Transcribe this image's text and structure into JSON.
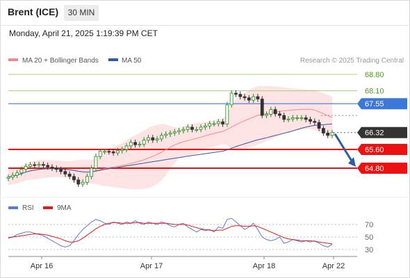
{
  "header": {
    "instrument": "Brent (ICE)",
    "timeframe": "30 MIN"
  },
  "datetime": "Monday, April 21, 2025 1:19:39 PM CET",
  "credit": "Research © 2025 Trading Central",
  "colors": {
    "ma20": "#f08a8a",
    "ma50": "#2f5d9e",
    "bb_fill": "#fde3e3",
    "up": "#1e8a1e",
    "down": "#333333",
    "resistance": "#a8cf7a",
    "pivot": "#3c78d8",
    "support": "#ee1111",
    "rsi": "#5b7bd5",
    "rsi_ma": "#e31a1a",
    "arrow": "#2f5d9e"
  },
  "chart_data": [
    {
      "type": "candlestick",
      "legend": [
        {
          "label": "MA 20 + Bollinger Bands",
          "color": "#f08a8a"
        },
        {
          "label": "MA 50",
          "color": "#2f5d9e"
        }
      ],
      "levels": [
        {
          "value": 68.8,
          "label": "68.80",
          "kind": "resistance"
        },
        {
          "value": 68.1,
          "label": "68.10",
          "kind": "resistance"
        },
        {
          "value": 67.55,
          "label": "67.55",
          "kind": "pivot"
        },
        {
          "value": 66.32,
          "label": "66.32",
          "kind": "last"
        },
        {
          "value": 65.6,
          "label": "65.60",
          "kind": "support"
        },
        {
          "value": 64.8,
          "label": "64.80",
          "kind": "support"
        }
      ],
      "forecast": {
        "from": 66.32,
        "to": 64.8
      },
      "close_series": [
        64.42,
        64.5,
        64.6,
        64.75,
        64.88,
        64.95,
        64.92,
        64.96,
        64.92,
        64.85,
        64.8,
        64.75,
        64.66,
        64.55,
        64.45,
        64.3,
        64.12,
        64.2,
        64.45,
        64.8,
        65.3,
        65.52,
        65.52,
        65.5,
        65.45,
        65.55,
        65.6,
        65.75,
        65.9,
        65.8,
        65.82,
        66.0,
        66.1,
        66.0,
        66.05,
        66.2,
        66.25,
        66.3,
        66.35,
        66.4,
        66.45,
        66.55,
        66.45,
        66.45,
        66.55,
        66.6,
        66.7,
        66.7,
        66.78,
        66.68,
        67.5,
        68.0,
        67.95,
        67.85,
        67.8,
        67.7,
        67.85,
        67.75,
        67.05,
        67.1,
        67.3,
        67.12,
        67.05,
        66.88,
        66.9,
        66.95,
        66.95,
        66.95,
        66.88,
        66.8,
        66.75,
        66.5,
        66.3,
        66.2,
        66.32
      ],
      "x_axis": [
        "Apr 16",
        "Apr 17",
        "Apr 18",
        "Apr 22"
      ]
    },
    {
      "type": "line",
      "legend": [
        {
          "label": "RSI",
          "color": "#5b7bd5"
        },
        {
          "label": "9MA",
          "color": "#e31a1a"
        }
      ],
      "y_ticks": [
        70,
        50,
        30
      ],
      "ylim": [
        20,
        82
      ],
      "rsi": [
        48,
        50,
        54,
        56,
        58,
        58,
        56,
        54,
        52,
        48,
        44,
        40,
        36,
        34,
        36,
        44,
        54,
        62,
        68,
        74,
        78,
        76,
        72,
        70,
        74,
        72,
        70,
        74,
        72,
        76,
        72,
        70,
        74,
        72,
        70,
        74,
        72,
        68,
        66,
        70,
        72,
        66,
        62,
        58,
        62,
        60,
        62,
        58,
        66,
        64,
        78,
        80,
        74,
        68,
        62,
        66,
        72,
        62,
        50,
        46,
        44,
        46,
        50,
        40,
        42,
        46,
        44,
        42,
        44,
        42,
        44,
        40,
        36,
        34,
        38
      ],
      "rsi_ma": [
        49,
        50,
        51,
        52,
        53,
        54,
        55,
        55,
        54,
        53,
        51,
        49,
        47,
        44,
        42,
        42,
        44,
        48,
        53,
        58,
        63,
        67,
        70,
        72,
        73,
        73,
        72,
        72,
        72,
        73,
        73,
        72,
        72,
        72,
        72,
        72,
        72,
        71,
        70,
        70,
        70,
        69,
        67,
        65,
        63,
        62,
        61,
        60,
        61,
        61,
        64,
        67,
        68,
        68,
        67,
        67,
        68,
        67,
        64,
        61,
        58,
        55,
        52,
        49,
        47,
        46,
        45,
        44,
        44,
        44,
        43,
        42,
        41,
        40,
        39
      ]
    }
  ]
}
